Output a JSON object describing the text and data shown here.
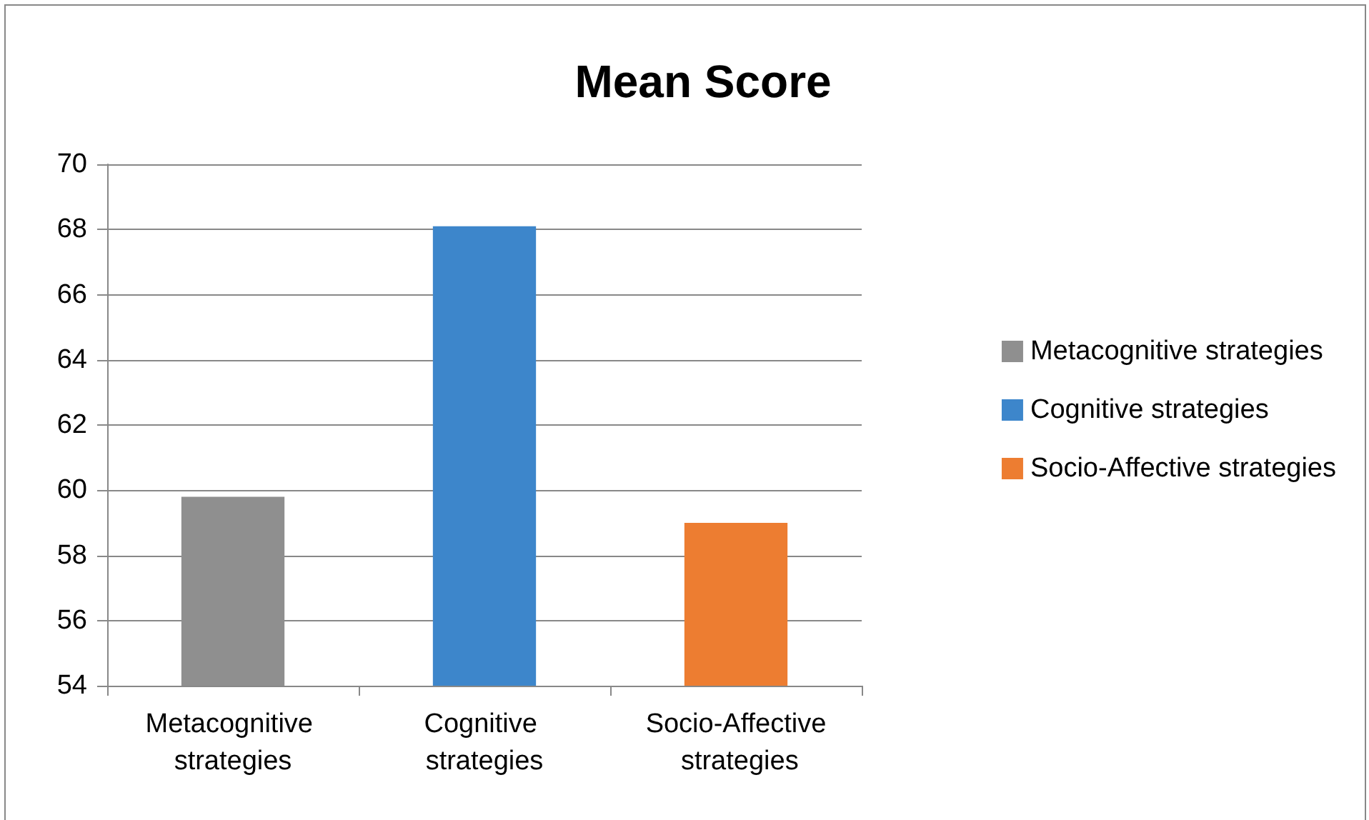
{
  "chart_data": {
    "type": "bar",
    "title": "Mean Score",
    "categories": [
      "Metacognitive strategies",
      "Cognitive strategies",
      "Socio-Affective strategies"
    ],
    "series": [
      {
        "name": "Metacognitive strategies",
        "color": "#8f8f8f",
        "values": [
          59.8,
          null,
          null
        ]
      },
      {
        "name": "Cognitive strategies",
        "color": "#3d86cb",
        "values": [
          null,
          68.1,
          null
        ]
      },
      {
        "name": "Socio-Affective strategies",
        "color": "#ed7d31",
        "values": [
          null,
          null,
          59.0
        ]
      }
    ],
    "stacked": true,
    "ylim": [
      54,
      70
    ],
    "yticks": [
      54,
      56,
      58,
      60,
      62,
      64,
      66,
      68,
      70
    ],
    "grid": "y",
    "legend": "right"
  }
}
